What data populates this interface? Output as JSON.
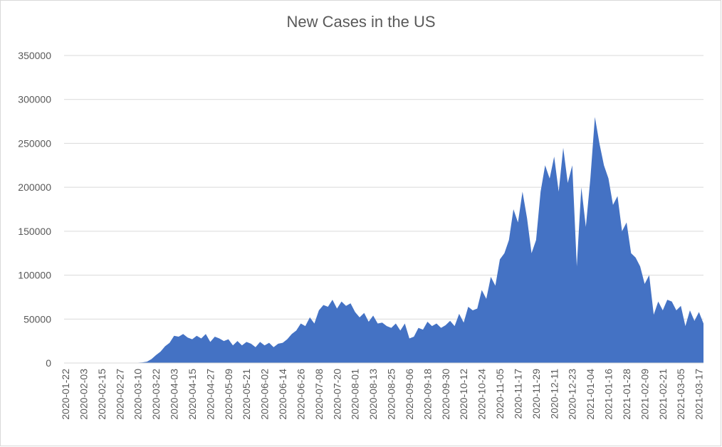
{
  "chart_data": {
    "type": "area",
    "title": "New Cases in the US",
    "color": "#4472c4",
    "grid": true,
    "categories": [
      "2020-01-22",
      null,
      null,
      null,
      "2020-02-03",
      null,
      null,
      null,
      "2020-02-15",
      null,
      null,
      null,
      "2020-02-27",
      null,
      null,
      null,
      "2020-03-10",
      null,
      null,
      null,
      "2020-03-22",
      null,
      null,
      null,
      "2020-04-03",
      null,
      null,
      null,
      "2020-04-15",
      null,
      null,
      null,
      "2020-04-27",
      null,
      null,
      null,
      "2020-05-09",
      null,
      null,
      null,
      "2020-05-21",
      null,
      null,
      null,
      "2020-06-02",
      null,
      null,
      null,
      "2020-06-14",
      null,
      null,
      null,
      "2020-06-26",
      null,
      null,
      null,
      "2020-07-08",
      null,
      null,
      null,
      "2020-07-20",
      null,
      null,
      null,
      "2020-08-01",
      null,
      null,
      null,
      "2020-08-13",
      null,
      null,
      null,
      "2020-08-25",
      null,
      null,
      null,
      "2020-09-06",
      null,
      null,
      null,
      "2020-09-18",
      null,
      null,
      null,
      "2020-09-30",
      null,
      null,
      null,
      "2020-10-12",
      null,
      null,
      null,
      "2020-10-24",
      null,
      null,
      null,
      "2020-11-05",
      null,
      null,
      null,
      "2020-11-17",
      null,
      null,
      null,
      "2020-11-29",
      null,
      null,
      null,
      "2020-12-11",
      null,
      null,
      null,
      "2020-12-23",
      null,
      null,
      null,
      "2021-01-04",
      null,
      null,
      null,
      "2021-01-16",
      null,
      null,
      null,
      "2021-01-28",
      null,
      null,
      null,
      "2021-02-09",
      null,
      null,
      null,
      "2021-02-21",
      null,
      null,
      null,
      "2021-03-05",
      null,
      null,
      null,
      "2021-03-17",
      null
    ],
    "values": [
      0,
      0,
      0,
      0,
      0,
      0,
      0,
      0,
      0,
      0,
      0,
      0,
      0,
      0,
      0,
      100,
      400,
      700,
      1500,
      4500,
      9000,
      13000,
      19000,
      23000,
      31000,
      30000,
      33000,
      29000,
      27000,
      31000,
      28000,
      33000,
      24000,
      30000,
      28000,
      25000,
      27000,
      20000,
      25000,
      20000,
      24000,
      22000,
      18000,
      24000,
      20000,
      23000,
      18000,
      22000,
      23000,
      27000,
      33000,
      37000,
      45000,
      42000,
      52000,
      45000,
      60000,
      66000,
      64000,
      72000,
      62000,
      70000,
      65000,
      68000,
      58000,
      52000,
      57000,
      47000,
      54000,
      45000,
      46000,
      42000,
      40000,
      45000,
      37000,
      45000,
      28000,
      30000,
      40000,
      38000,
      47000,
      42000,
      45000,
      40000,
      43000,
      48000,
      42000,
      56000,
      46000,
      64000,
      60000,
      62000,
      83000,
      73000,
      98000,
      88000,
      118000,
      125000,
      140000,
      175000,
      160000,
      195000,
      165000,
      125000,
      140000,
      195000,
      225000,
      210000,
      235000,
      195000,
      245000,
      205000,
      225000,
      110000,
      200000,
      155000,
      210000,
      280000,
      250000,
      225000,
      210000,
      180000,
      190000,
      150000,
      160000,
      125000,
      120000,
      110000,
      90000,
      100000,
      55000,
      70000,
      60000,
      72000,
      70000,
      60000,
      65000,
      42000,
      60000,
      48000,
      58000,
      45000
    ],
    "ylim": [
      0,
      350000
    ],
    "yticks": [
      0,
      50000,
      100000,
      150000,
      200000,
      250000,
      300000,
      350000
    ]
  }
}
